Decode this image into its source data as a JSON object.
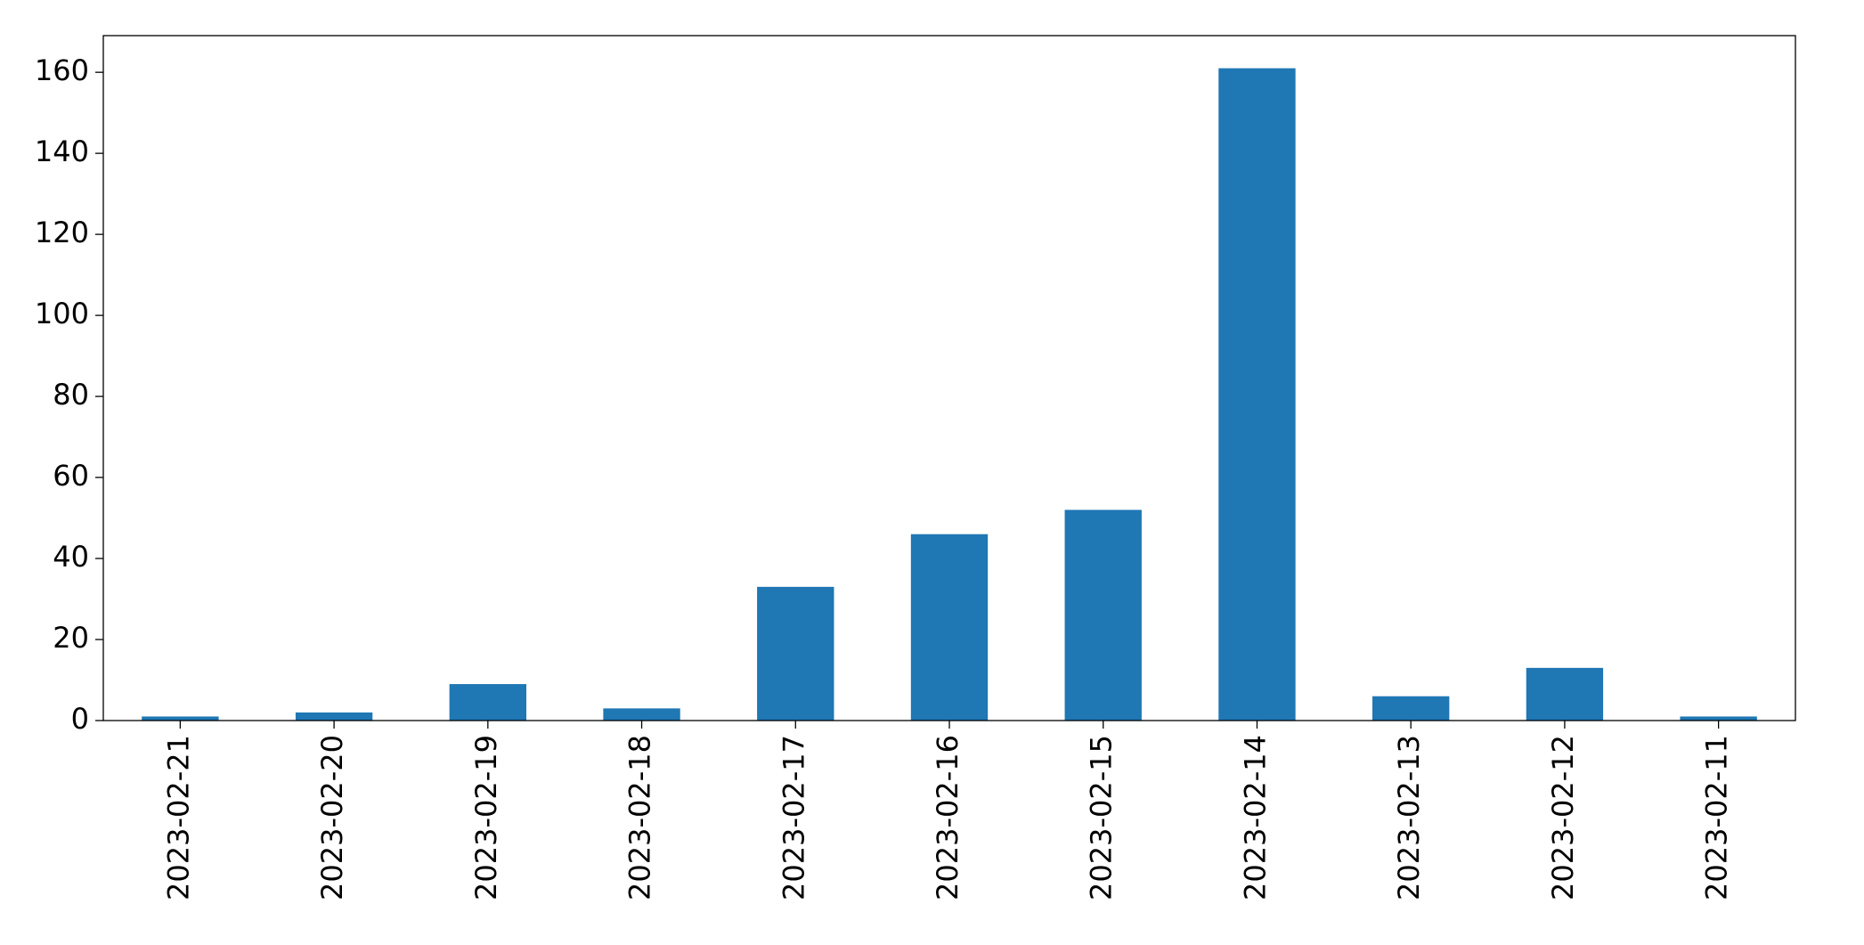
{
  "chart_data": {
    "type": "bar",
    "categories": [
      "2023-02-21",
      "2023-02-20",
      "2023-02-19",
      "2023-02-18",
      "2023-02-17",
      "2023-02-16",
      "2023-02-15",
      "2023-02-14",
      "2023-02-13",
      "2023-02-12",
      "2023-02-11"
    ],
    "values": [
      1,
      2,
      9,
      3,
      33,
      46,
      52,
      161,
      6,
      13,
      1
    ],
    "color": "#1f77b4",
    "ylim": [
      0,
      169.05
    ],
    "yticks": [
      0,
      20,
      40,
      60,
      80,
      100,
      120,
      140,
      160
    ],
    "grid": false
  }
}
